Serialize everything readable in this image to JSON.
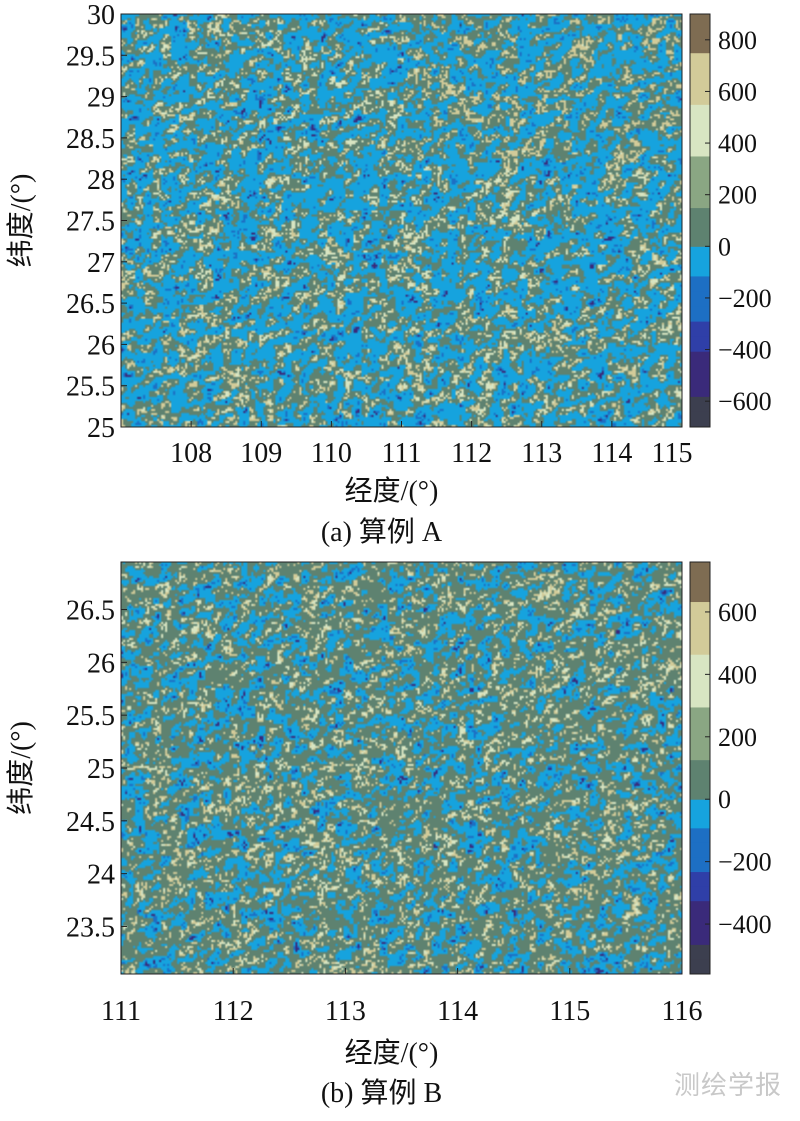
{
  "watermark": "测绘学报",
  "colormap": {
    "negative": [
      "#3c3f4f",
      "#3a2a7a",
      "#2f3fa8",
      "#1d6fc4",
      "#16a3de"
    ],
    "positive": [
      "#5e8270",
      "#8aa683",
      "#d8e5c2",
      "#d2cb99",
      "#7e6c52"
    ]
  },
  "chart_data": [
    {
      "type": "heatmap",
      "caption": "(a) 算例 A",
      "xlabel": "经度/(°)",
      "ylabel": "纬度/(°)",
      "xlim": [
        107.0,
        115.0
      ],
      "ylim": [
        25.0,
        30.0
      ],
      "xticks": [
        108,
        109,
        110,
        111,
        112,
        113,
        114,
        115
      ],
      "yticks": [
        25,
        25.5,
        26,
        26.5,
        27,
        27.5,
        28,
        28.5,
        29,
        29.5,
        30
      ],
      "xtick_labels": [
        "108",
        "109",
        "110",
        "111",
        "112",
        "113",
        "114",
        "115"
      ],
      "ytick_labels": [
        "25",
        "25.5",
        "26",
        "26.5",
        "27",
        "27.5",
        "28",
        "28.5",
        "29",
        "29.5",
        "30"
      ],
      "colorbar": {
        "range": [
          -700,
          900
        ],
        "ticks": [
          -600,
          -400,
          -200,
          0,
          200,
          400,
          600,
          800
        ],
        "tick_labels": [
          "−600",
          "−400",
          "−200",
          "0",
          "200",
          "400",
          "600",
          "800"
        ]
      }
    },
    {
      "type": "heatmap",
      "caption": "(b) 算例 B",
      "xlabel": "经度/(°)",
      "ylabel": "纬度/(°)",
      "xlim": [
        111.0,
        116.0
      ],
      "ylim": [
        23.05,
        26.95
      ],
      "xticks": [
        111,
        112,
        113,
        114,
        115,
        116
      ],
      "yticks": [
        23.5,
        24,
        24.5,
        25,
        25.5,
        26,
        26.5
      ],
      "xtick_labels": [
        "111",
        "112",
        "113",
        "114",
        "115",
        "116"
      ],
      "ytick_labels": [
        "23.5",
        "24",
        "24.5",
        "25",
        "25.5",
        "26",
        "26.5"
      ],
      "colorbar": {
        "range": [
          -560,
          760
        ],
        "ticks": [
          -400,
          -200,
          0,
          200,
          400,
          600
        ],
        "tick_labels": [
          "−400",
          "−200",
          "0",
          "200",
          "400",
          "600"
        ]
      }
    }
  ]
}
